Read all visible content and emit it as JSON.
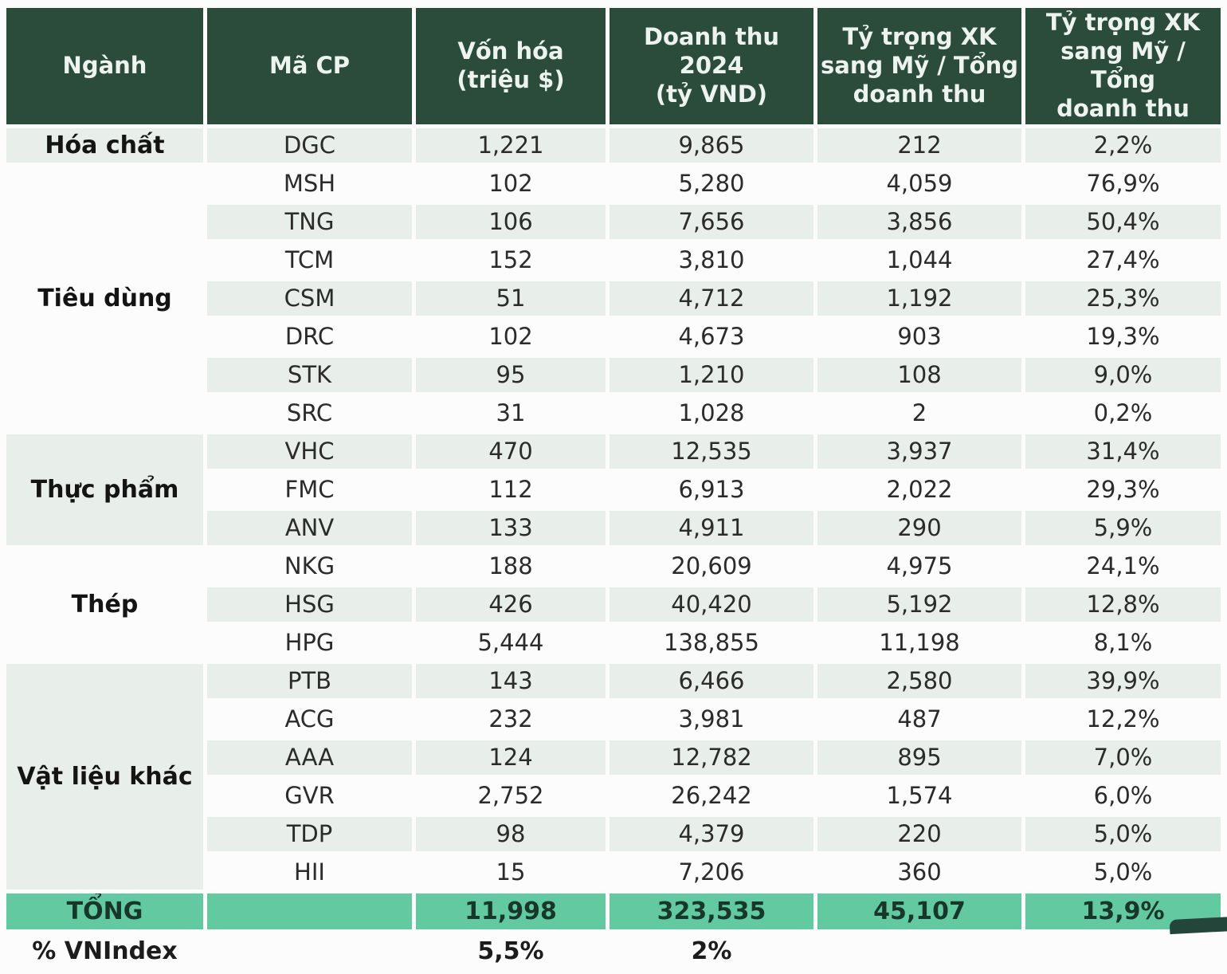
{
  "colors": {
    "header_bg": "#2b4b3b",
    "header_text": "#edf3ee",
    "stripe_bg": "#e8eee9",
    "total_bg": "#63c9a0",
    "page_bg": "#fbfcfb"
  },
  "chart_data": {
    "type": "table",
    "columns": [
      "Ngành",
      "Mã CP",
      "Vốn hóa\n(triệu $)",
      "Doanh thu 2024\n(tỷ VND)",
      "Tỷ trọng XK\nsang Mỹ / Tổng\ndoanh thu",
      "Tỷ trọng XK\nsang Mỹ / Tổng\ndoanh thu"
    ],
    "groups": [
      {
        "nganh": "Hóa chất",
        "shade": true,
        "rows": [
          [
            "DGC",
            "1,221",
            "9,865",
            "212",
            "2,2%"
          ]
        ]
      },
      {
        "nganh": "Tiêu dùng",
        "shade": false,
        "rows": [
          [
            "MSH",
            "102",
            "5,280",
            "4,059",
            "76,9%"
          ],
          [
            "TNG",
            "106",
            "7,656",
            "3,856",
            "50,4%"
          ],
          [
            "TCM",
            "152",
            "3,810",
            "1,044",
            "27,4%"
          ],
          [
            "CSM",
            "51",
            "4,712",
            "1,192",
            "25,3%"
          ],
          [
            "DRC",
            "102",
            "4,673",
            "903",
            "19,3%"
          ],
          [
            "STK",
            "95",
            "1,210",
            "108",
            "9,0%"
          ],
          [
            "SRC",
            "31",
            "1,028",
            "2",
            "0,2%"
          ]
        ]
      },
      {
        "nganh": "Thực phẩm",
        "shade": true,
        "rows": [
          [
            "VHC",
            "470",
            "12,535",
            "3,937",
            "31,4%"
          ],
          [
            "FMC",
            "112",
            "6,913",
            "2,022",
            "29,3%"
          ],
          [
            "ANV",
            "133",
            "4,911",
            "290",
            "5,9%"
          ]
        ]
      },
      {
        "nganh": "Thép",
        "shade": false,
        "rows": [
          [
            "NKG",
            "188",
            "20,609",
            "4,975",
            "24,1%"
          ],
          [
            "HSG",
            "426",
            "40,420",
            "5,192",
            "12,8%"
          ],
          [
            "HPG",
            "5,444",
            "138,855",
            "11,198",
            "8,1%"
          ]
        ]
      },
      {
        "nganh": "Vật liệu khác",
        "shade": true,
        "rows": [
          [
            "PTB",
            "143",
            "6,466",
            "2,580",
            "39,9%"
          ],
          [
            "ACG",
            "232",
            "3,981",
            "487",
            "12,2%"
          ],
          [
            "AAA",
            "124",
            "12,782",
            "895",
            "7,0%"
          ],
          [
            "GVR",
            "2,752",
            "26,242",
            "1,574",
            "6,0%"
          ],
          [
            "TDP",
            "98",
            "4,379",
            "220",
            "5,0%"
          ],
          [
            "HII",
            "15",
            "7,206",
            "360",
            "5,0%"
          ]
        ]
      }
    ],
    "total_row": {
      "label": "TỔNG",
      "von_hoa": "11,998",
      "doanh_thu": "323,535",
      "xk_my": "45,107",
      "ty_trong": "13,9%"
    },
    "vnindex_row": {
      "label": "% VNIndex",
      "von_hoa": "5,5%",
      "doanh_thu": "2%"
    }
  }
}
